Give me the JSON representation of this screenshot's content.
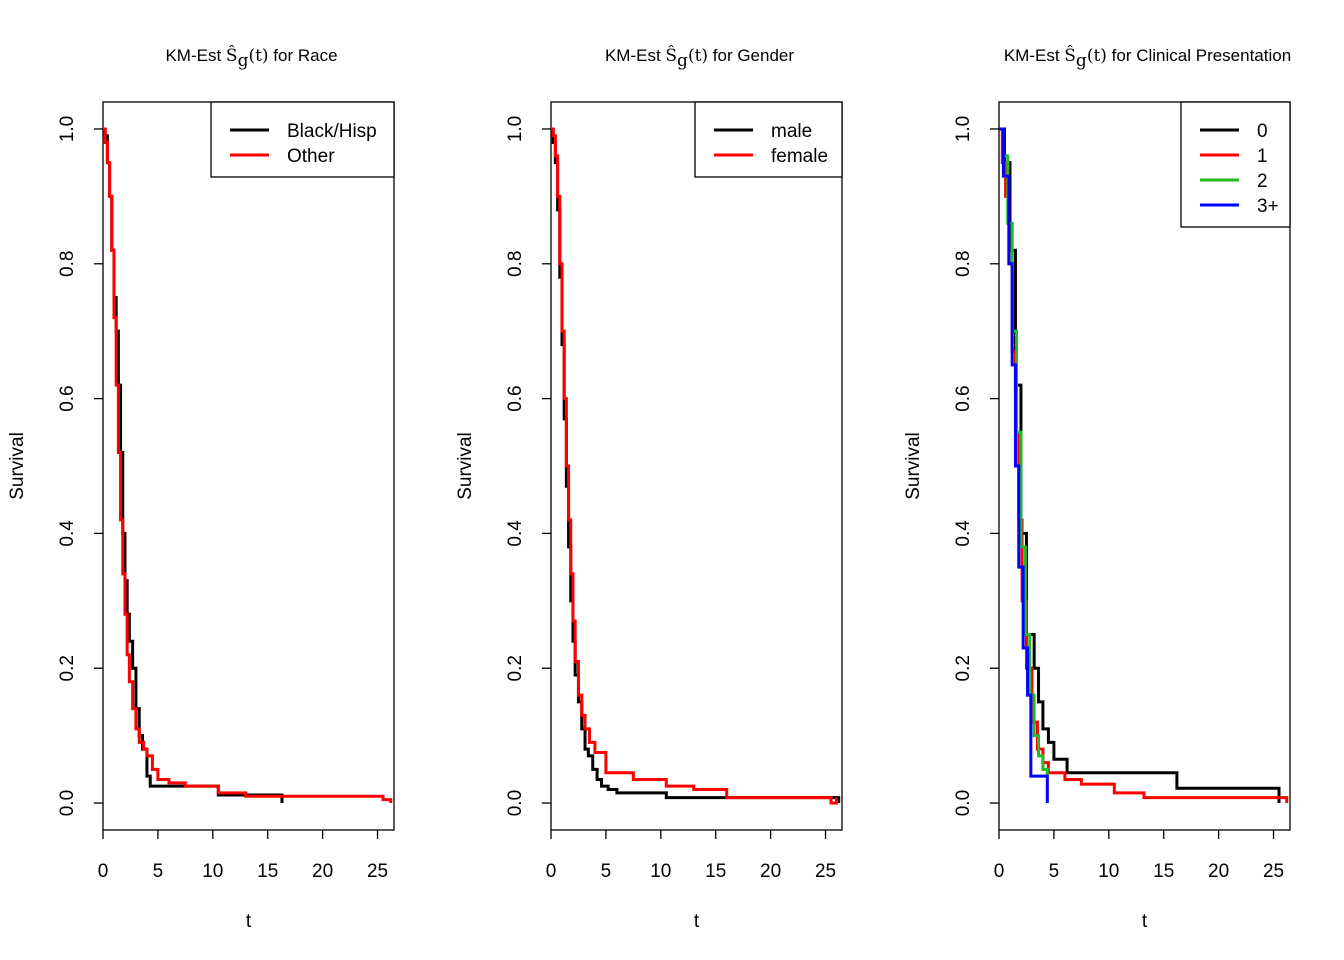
{
  "colors": {
    "black": "#000000",
    "red": "#ff0000",
    "green": "#22bb22",
    "blue": "#0000ff"
  },
  "chart_data": [
    {
      "type": "line",
      "title_prefix": "KM-Est ",
      "title_symbol": "Ŝ",
      "title_subscript": "g",
      "title_arg": "(t)",
      "title_suffix": " for Race",
      "xlabel": "t",
      "ylabel": "Survival",
      "xlim": [
        0,
        26.5
      ],
      "ylim": [
        -0.04,
        1.04
      ],
      "xticks": [
        "0",
        "5",
        "10",
        "15",
        "20",
        "25"
      ],
      "yticks": [
        "0.0",
        "0.2",
        "0.4",
        "0.6",
        "0.8",
        "1.0"
      ],
      "legend_position": "top-right",
      "series": [
        {
          "name": "Black/Hisp",
          "color": "#000000",
          "x": [
            0,
            0.2,
            0.4,
            0.6,
            0.8,
            1.0,
            1.2,
            1.4,
            1.6,
            1.8,
            2.0,
            2.2,
            2.4,
            2.7,
            3.0,
            3.3,
            3.6,
            4.0,
            4.3,
            5.0,
            6.0,
            10.5,
            16.3
          ],
          "y": [
            1.0,
            0.99,
            0.95,
            0.9,
            0.82,
            0.75,
            0.7,
            0.62,
            0.52,
            0.4,
            0.33,
            0.28,
            0.24,
            0.2,
            0.14,
            0.1,
            0.08,
            0.04,
            0.025,
            0.025,
            0.025,
            0.012,
            0.0
          ]
        },
        {
          "name": "Other",
          "color": "#ff0000",
          "x": [
            0,
            0.2,
            0.4,
            0.6,
            0.8,
            1.0,
            1.2,
            1.4,
            1.6,
            1.8,
            2.0,
            2.2,
            2.4,
            2.7,
            3.0,
            3.3,
            3.7,
            4.0,
            4.5,
            5.0,
            6.0,
            7.5,
            10.5,
            13.0,
            25.5,
            26.2
          ],
          "y": [
            1.0,
            0.98,
            0.95,
            0.9,
            0.82,
            0.72,
            0.62,
            0.52,
            0.42,
            0.34,
            0.28,
            0.22,
            0.18,
            0.14,
            0.11,
            0.09,
            0.08,
            0.07,
            0.05,
            0.035,
            0.03,
            0.025,
            0.015,
            0.01,
            0.005,
            0.0
          ]
        }
      ]
    },
    {
      "type": "line",
      "title_prefix": "KM-Est ",
      "title_symbol": "Ŝ",
      "title_subscript": "g",
      "title_arg": "(t)",
      "title_suffix": " for Gender",
      "xlabel": "t",
      "ylabel": "Survival",
      "xlim": [
        0,
        26.5
      ],
      "ylim": [
        -0.04,
        1.04
      ],
      "xticks": [
        "0",
        "5",
        "10",
        "15",
        "20",
        "25"
      ],
      "yticks": [
        "0.0",
        "0.2",
        "0.4",
        "0.6",
        "0.8",
        "1.0"
      ],
      "legend_position": "top-right",
      "series": [
        {
          "name": "male",
          "color": "#000000",
          "x": [
            0,
            0.2,
            0.4,
            0.6,
            0.8,
            1.0,
            1.2,
            1.4,
            1.6,
            1.8,
            2.0,
            2.2,
            2.5,
            2.8,
            3.1,
            3.4,
            3.8,
            4.2,
            4.6,
            5.2,
            6.0,
            10.5,
            26.2
          ],
          "y": [
            1.0,
            0.98,
            0.95,
            0.88,
            0.78,
            0.68,
            0.57,
            0.47,
            0.38,
            0.3,
            0.24,
            0.19,
            0.15,
            0.11,
            0.08,
            0.07,
            0.05,
            0.035,
            0.025,
            0.02,
            0.015,
            0.008,
            0.0
          ]
        },
        {
          "name": "female",
          "color": "#ff0000",
          "x": [
            0,
            0.2,
            0.4,
            0.6,
            0.8,
            1.0,
            1.2,
            1.4,
            1.6,
            1.8,
            2.0,
            2.2,
            2.5,
            2.8,
            3.1,
            3.5,
            4.0,
            5.0,
            7.5,
            10.5,
            13.0,
            16.0,
            25.5,
            26.0
          ],
          "y": [
            1.0,
            0.99,
            0.96,
            0.9,
            0.8,
            0.7,
            0.6,
            0.5,
            0.42,
            0.34,
            0.27,
            0.21,
            0.16,
            0.13,
            0.11,
            0.09,
            0.075,
            0.045,
            0.035,
            0.025,
            0.02,
            0.008,
            0.0,
            0.008
          ]
        }
      ]
    },
    {
      "type": "line",
      "title_prefix": "KM-Est ",
      "title_symbol": "Ŝ",
      "title_subscript": "g",
      "title_arg": "(t)",
      "title_suffix": " for Clinical Presentation",
      "xlabel": "t",
      "ylabel": "Survival",
      "xlim": [
        0,
        26.5
      ],
      "ylim": [
        -0.04,
        1.04
      ],
      "xticks": [
        "0",
        "5",
        "10",
        "15",
        "20",
        "25"
      ],
      "yticks": [
        "0.0",
        "0.2",
        "0.4",
        "0.6",
        "0.8",
        "1.0"
      ],
      "legend_position": "top-right",
      "series": [
        {
          "name": "0",
          "color": "#000000",
          "x": [
            0,
            0.5,
            1.0,
            1.5,
            2.0,
            2.5,
            3.2,
            3.6,
            4.0,
            4.5,
            5.0,
            6.2,
            16.2,
            25.5
          ],
          "y": [
            1.0,
            0.95,
            0.82,
            0.62,
            0.4,
            0.25,
            0.2,
            0.15,
            0.11,
            0.09,
            0.065,
            0.045,
            0.022,
            0.0
          ]
        },
        {
          "name": "1",
          "color": "#ff0000",
          "x": [
            0,
            0.3,
            0.6,
            0.9,
            1.2,
            1.5,
            1.8,
            2.1,
            2.5,
            3.0,
            3.5,
            4.0,
            4.5,
            6.0,
            7.5,
            10.5,
            13.2,
            26.2
          ],
          "y": [
            1.0,
            0.95,
            0.9,
            0.8,
            0.67,
            0.55,
            0.42,
            0.3,
            0.2,
            0.12,
            0.08,
            0.06,
            0.045,
            0.035,
            0.028,
            0.015,
            0.008,
            0.0
          ]
        },
        {
          "name": "2",
          "color": "#22bb22",
          "x": [
            0,
            0.4,
            0.8,
            1.2,
            1.6,
            2.0,
            2.4,
            2.8,
            3.2,
            3.6,
            4.0,
            4.4
          ],
          "y": [
            1.0,
            0.96,
            0.86,
            0.7,
            0.55,
            0.38,
            0.25,
            0.16,
            0.1,
            0.07,
            0.05,
            0.04
          ]
        },
        {
          "name": "3+",
          "color": "#0000ff",
          "x": [
            0,
            0.4,
            0.9,
            1.2,
            1.5,
            1.8,
            2.2,
            2.6,
            2.9,
            4.4
          ],
          "y": [
            1.0,
            0.93,
            0.8,
            0.65,
            0.5,
            0.35,
            0.23,
            0.16,
            0.04,
            0.0
          ]
        }
      ]
    }
  ]
}
